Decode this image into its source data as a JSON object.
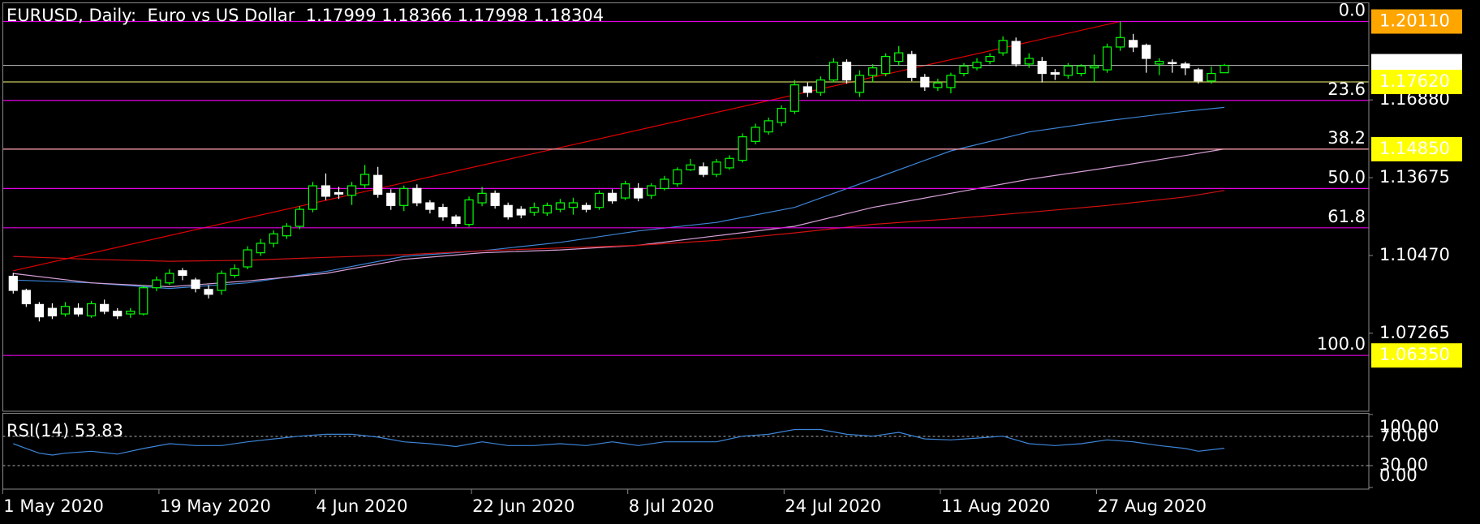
{
  "chart_data": [
    {
      "type": "candlestick",
      "title": "EURUSD, Daily:  Euro vs US Dollar  1.17999 1.18366 1.17998 1.18304",
      "categories": [
        "1 May 2020",
        null,
        null,
        null,
        null,
        null,
        null,
        null,
        null,
        null,
        null,
        null,
        "19 May 2020",
        null,
        null,
        null,
        null,
        null,
        null,
        null,
        null,
        null,
        null,
        null,
        "4 Jun 2020",
        null,
        null,
        null,
        null,
        null,
        null,
        null,
        null,
        null,
        null,
        null,
        "22 Jun 2020",
        null,
        null,
        null,
        null,
        null,
        null,
        null,
        null,
        null,
        null,
        null,
        "8 Jul 2020",
        null,
        null,
        null,
        null,
        null,
        null,
        null,
        null,
        null,
        null,
        null,
        "24 Jul 2020",
        null,
        null,
        null,
        null,
        null,
        null,
        null,
        null,
        null,
        null,
        null,
        "11 Aug 2020",
        null,
        null,
        null,
        null,
        null,
        null,
        null,
        null,
        null,
        null,
        null,
        "27 Aug 2020",
        null,
        null,
        null,
        null,
        null,
        null,
        null,
        null,
        null
      ],
      "open": [
        1.0961,
        1.0903,
        1.0845,
        1.0829,
        1.0806,
        1.0829,
        1.0798,
        1.0845,
        1.0817,
        1.0806,
        1.0806,
        1.0914,
        1.0934,
        1.0984,
        1.0946,
        1.0907,
        1.0903,
        1.0965,
        1.1,
        1.1058,
        1.1097,
        1.1128,
        1.1167,
        1.1237,
        1.1334,
        1.1306,
        1.1295,
        1.1338,
        1.1377,
        1.1303,
        1.1253,
        1.1323,
        1.1264,
        1.1245,
        1.1206,
        1.1175,
        1.1264,
        1.1303,
        1.1253,
        1.1237,
        1.1225,
        1.1222,
        1.1237,
        1.1245,
        1.1253,
        1.1245,
        1.1303,
        1.1284,
        1.1323,
        1.1295,
        1.1323,
        1.1342,
        1.14,
        1.1412,
        1.1381,
        1.1408,
        1.1439,
        1.1517,
        1.1556,
        1.1595,
        1.1641,
        1.1742,
        1.1719,
        1.177,
        1.1843,
        1.1719,
        1.1789,
        1.1797,
        1.1847,
        1.1875,
        1.1781,
        1.1739,
        1.1739,
        1.1797,
        1.182,
        1.1847,
        1.1882,
        1.1929,
        1.1836,
        1.1847,
        1.18,
        1.1789,
        1.1797,
        1.182,
        1.1812,
        1.1906,
        1.1933,
        1.1913,
        1.1836,
        1.1842,
        1.1836,
        1.1812,
        1.1766,
        1.17999
      ],
      "high": [
        1.0975,
        1.091,
        1.0855,
        1.085,
        1.0855,
        1.085,
        1.086,
        1.0865,
        1.083,
        1.083,
        1.0925,
        1.096,
        1.099,
        1.0995,
        1.0955,
        1.0925,
        1.0985,
        1.101,
        1.1085,
        1.1115,
        1.115,
        1.118,
        1.125,
        1.135,
        1.1385,
        1.133,
        1.135,
        1.142,
        1.1412,
        1.132,
        1.1335,
        1.134,
        1.1275,
        1.126,
        1.1215,
        1.129,
        1.133,
        1.1315,
        1.1265,
        1.125,
        1.1265,
        1.1265,
        1.128,
        1.1285,
        1.1265,
        1.1315,
        1.132,
        1.1355,
        1.1345,
        1.1345,
        1.1375,
        1.141,
        1.1445,
        1.143,
        1.1445,
        1.146,
        1.155,
        1.159,
        1.1615,
        1.1665,
        1.177,
        1.176,
        1.1785,
        1.186,
        1.1855,
        1.181,
        1.1835,
        1.188,
        1.191,
        1.189,
        1.1795,
        1.1775,
        1.18,
        1.184,
        1.186,
        1.188,
        1.195,
        1.1945,
        1.188,
        1.1865,
        1.1815,
        1.184,
        1.1835,
        1.1875,
        1.192,
        1.2011,
        1.196,
        1.192,
        1.186,
        1.1855,
        1.1845,
        1.182,
        1.1825,
        1.18366
      ],
      "low": [
        1.089,
        1.0835,
        1.0775,
        1.0785,
        1.0795,
        1.0795,
        1.079,
        1.0805,
        1.0785,
        1.079,
        1.08,
        1.09,
        1.0925,
        1.0945,
        1.0895,
        1.087,
        1.0885,
        1.0955,
        1.099,
        1.1045,
        1.108,
        1.1115,
        1.1155,
        1.1225,
        1.1275,
        1.128,
        1.1255,
        1.1325,
        1.1285,
        1.1235,
        1.123,
        1.125,
        1.122,
        1.119,
        1.1165,
        1.1165,
        1.125,
        1.124,
        1.1195,
        1.12,
        1.121,
        1.121,
        1.1225,
        1.1215,
        1.1225,
        1.1235,
        1.126,
        1.1275,
        1.127,
        1.128,
        1.1315,
        1.133,
        1.1395,
        1.137,
        1.137,
        1.14,
        1.143,
        1.1505,
        1.1545,
        1.158,
        1.163,
        1.17,
        1.1705,
        1.176,
        1.1755,
        1.17,
        1.176,
        1.1785,
        1.183,
        1.1765,
        1.1725,
        1.1725,
        1.1715,
        1.1785,
        1.181,
        1.1835,
        1.187,
        1.1825,
        1.182,
        1.176,
        1.177,
        1.1775,
        1.1785,
        1.176,
        1.18,
        1.189,
        1.1885,
        1.18,
        1.179,
        1.18,
        1.179,
        1.1755,
        1.1755,
        1.17998
      ],
      "close": [
        1.0903,
        1.0848,
        1.0794,
        1.0798,
        1.0837,
        1.0806,
        1.0848,
        1.0817,
        1.0798,
        1.0817,
        1.0914,
        1.0946,
        1.0973,
        1.0965,
        1.0911,
        1.0887,
        1.0973,
        1.0992,
        1.107,
        1.1097,
        1.1136,
        1.1167,
        1.1237,
        1.1334,
        1.1291,
        1.13,
        1.1334,
        1.1381,
        1.1299,
        1.1253,
        1.1323,
        1.1264,
        1.1237,
        1.1206,
        1.1179,
        1.1276,
        1.1303,
        1.1253,
        1.1206,
        1.1214,
        1.1245,
        1.1253,
        1.1264,
        1.1264,
        1.1237,
        1.1303,
        1.1272,
        1.1342,
        1.1284,
        1.1334,
        1.1361,
        1.14,
        1.142,
        1.1381,
        1.1432,
        1.1447,
        1.1536,
        1.1575,
        1.1602,
        1.1653,
        1.175,
        1.1719,
        1.177,
        1.1843,
        1.177,
        1.1789,
        1.182,
        1.1867,
        1.1882,
        1.1781,
        1.1742,
        1.1758,
        1.1789,
        1.1828,
        1.1843,
        1.1867,
        1.1933,
        1.1836,
        1.1859,
        1.1797,
        1.1794,
        1.1828,
        1.1828,
        1.1828,
        1.1906,
        1.1945,
        1.1906,
        1.1859,
        1.1847,
        1.1838,
        1.182,
        1.1766,
        1.1797,
        1.18304
      ],
      "bull_color": "#00ff00",
      "bear_color": "#ffffff",
      "ylim": [
        1.0405,
        1.2088
      ],
      "yticks": [
        {
          "value": 1.1688,
          "label": "1.16880"
        },
        1.13675,
        {
          "value": 1.1047,
          "label": "1.10470"
        },
        1.07265
      ],
      "moving_averages": [
        {
          "color": "#3d85d8",
          "x": [
            0,
            6,
            12,
            18,
            24,
            30,
            36,
            42,
            48,
            54,
            60,
            66,
            72,
            78,
            84,
            90,
            93
          ],
          "values": [
            1.0946,
            1.0934,
            1.0911,
            1.0934,
            1.0981,
            1.1043,
            1.1066,
            1.1101,
            1.1148,
            1.1183,
            1.1245,
            1.1361,
            1.1478,
            1.1556,
            1.1602,
            1.1641,
            1.1657
          ]
        },
        {
          "color": "#d8a0d8",
          "x": [
            0,
            6,
            12,
            18,
            24,
            30,
            36,
            42,
            48,
            54,
            60,
            66,
            72,
            78,
            84,
            90,
            93
          ],
          "values": [
            1.0973,
            1.0934,
            1.0918,
            1.0942,
            1.0973,
            1.1031,
            1.1058,
            1.107,
            1.1089,
            1.1128,
            1.1167,
            1.1245,
            1.1303,
            1.1361,
            1.1408,
            1.1459,
            1.1486
          ]
        },
        {
          "color": "#d01010",
          "x": [
            0,
            6,
            12,
            18,
            24,
            30,
            36,
            42,
            48,
            54,
            60,
            66,
            72,
            78,
            84,
            90,
            93
          ],
          "values": [
            1.1043,
            1.1031,
            1.1023,
            1.1027,
            1.1039,
            1.105,
            1.1066,
            1.1078,
            1.1089,
            1.1109,
            1.114,
            1.1175,
            1.1198,
            1.1225,
            1.1253,
            1.1288,
            1.1315
          ]
        }
      ],
      "trendline": {
        "color": "#e00000",
        "x": [
          0,
          85
        ],
        "values": [
          1.0984,
          1.2011
        ]
      },
      "fibonacci": {
        "color": "#e000e0",
        "levels": [
          {
            "value": 1.2011,
            "label": "0.0"
          },
          {
            "value": 1.1686,
            "label": "23.6"
          },
          {
            "value": 1.1485,
            "label": "38.2"
          },
          {
            "value": 1.1323,
            "label": "50.0"
          },
          {
            "value": 1.1161,
            "label": "61.8"
          },
          {
            "value": 1.0635,
            "label": "100.0"
          }
        ]
      },
      "bid_line": {
        "value": 1.18304,
        "color": "#c0c0c0",
        "box_color": "#ffffff"
      },
      "price_lines": [
        {
          "value": 1.2011,
          "label": "1.20110",
          "box_color": "#ffa500"
        },
        {
          "value": 1.1762,
          "label": "1.17620",
          "color": "#c8c860",
          "box_color": "#ffff00"
        },
        {
          "value": 1.1485,
          "label": "1.14850",
          "color": "#f4a8a0",
          "box_color": "#ffff00"
        },
        {
          "value": 1.0635,
          "label": "1.06350",
          "box_color": "#ffff00"
        }
      ]
    },
    {
      "type": "line",
      "title": "RSI(14) 53.83",
      "color": "#3d85d8",
      "x": [
        0,
        1,
        2,
        3,
        4,
        6,
        8,
        10,
        12,
        14,
        16,
        18,
        20,
        22,
        24,
        26,
        28,
        30,
        32,
        34,
        36,
        38,
        40,
        42,
        44,
        46,
        48,
        50,
        52,
        54,
        56,
        58,
        60,
        62,
        64,
        66,
        68,
        70,
        72,
        74,
        76,
        78,
        80,
        82,
        84,
        86,
        88,
        90,
        91,
        93
      ],
      "values": [
        60,
        53.5,
        47,
        44.5,
        47,
        49.7,
        45.8,
        53.5,
        60,
        57.4,
        57.4,
        62.6,
        66.5,
        70.3,
        72.9,
        72.9,
        69,
        62.6,
        60,
        56.1,
        62.6,
        57.4,
        57.4,
        60,
        57.4,
        62.6,
        57.4,
        62.6,
        62.6,
        62.6,
        70.3,
        72.9,
        79.4,
        79.4,
        72.9,
        70.3,
        75.5,
        66.5,
        65.2,
        67.7,
        70.3,
        60,
        57.4,
        60,
        65.2,
        62.6,
        57.4,
        53.5,
        49.7,
        53.83
      ],
      "ylim": [
        0,
        100
      ],
      "yticks": [
        {
          "value": 100,
          "label": "100.00"
        },
        {
          "value": 70,
          "label": "70.00"
        },
        {
          "value": 30,
          "label": "30.00"
        },
        {
          "value": 0,
          "label": "0.00"
        }
      ],
      "levels": [
        70,
        30
      ]
    }
  ]
}
